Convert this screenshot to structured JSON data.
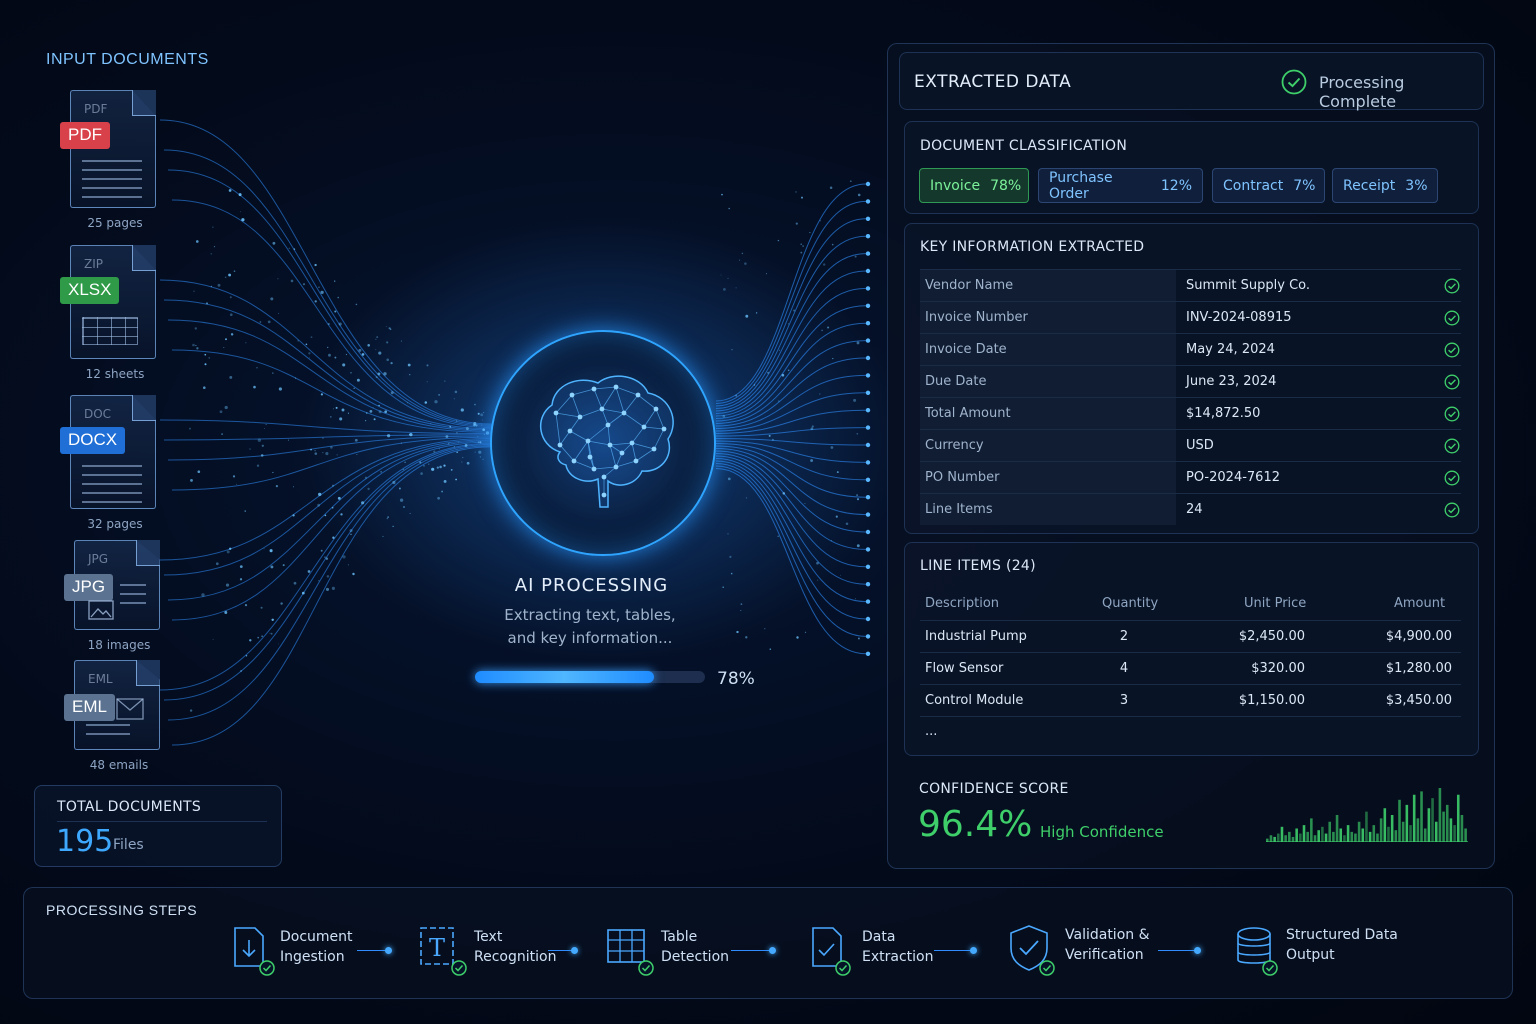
{
  "input": {
    "title": "INPUT DOCUMENTS",
    "documents": [
      {
        "type": "PDF",
        "ghost": "PDF",
        "caption": "25 pages",
        "color": "#d9414a"
      },
      {
        "type": "XLSX",
        "ghost": "ZIP",
        "caption": "12 sheets",
        "color": "#2f9a48"
      },
      {
        "type": "DOCX",
        "ghost": "DOC",
        "caption": "32 pages",
        "color": "#1f6fd6"
      },
      {
        "type": "JPG",
        "ghost": "JPG",
        "caption": "18 images",
        "color": "#5b7391"
      },
      {
        "type": "EML",
        "ghost": "EML",
        "caption": "48 emails",
        "color": "#5b7391"
      }
    ],
    "total": {
      "label": "TOTAL DOCUMENTS",
      "count": "195",
      "unit": "Files"
    }
  },
  "processing": {
    "title": "AI PROCESSING",
    "subtitle_line1": "Extracting text, tables,",
    "subtitle_line2": "and key information...",
    "progress_percent": 78,
    "progress_label": "78%"
  },
  "extracted": {
    "title": "EXTRACTED DATA",
    "status": "Processing Complete",
    "classification": {
      "title": "DOCUMENT CLASSIFICATION",
      "chips": [
        {
          "label": "Invoice",
          "value": "78%",
          "active": true
        },
        {
          "label": "Purchase Order",
          "value": "12%",
          "active": false
        },
        {
          "label": "Contract",
          "value": "7%",
          "active": false
        },
        {
          "label": "Receipt",
          "value": "3%",
          "active": false
        }
      ]
    },
    "key_info": {
      "title": "KEY INFORMATION EXTRACTED",
      "rows": [
        {
          "key": "Vendor Name",
          "value": "Summit Supply Co."
        },
        {
          "key": "Invoice Number",
          "value": "INV-2024-08915"
        },
        {
          "key": "Invoice Date",
          "value": "May 24, 2024"
        },
        {
          "key": "Due Date",
          "value": "June 23, 2024"
        },
        {
          "key": "Total Amount",
          "value": "$14,872.50"
        },
        {
          "key": "Currency",
          "value": "USD"
        },
        {
          "key": "PO Number",
          "value": "PO-2024-7612"
        },
        {
          "key": "Line Items",
          "value": "24"
        }
      ]
    },
    "line_items": {
      "title": "LINE ITEMS (24)",
      "headers": {
        "description": "Description",
        "quantity": "Quantity",
        "unit_price": "Unit Price",
        "amount": "Amount"
      },
      "rows": [
        {
          "description": "Industrial Pump",
          "quantity": "2",
          "unit_price": "$2,450.00",
          "amount": "$4,900.00"
        },
        {
          "description": "Flow Sensor",
          "quantity": "4",
          "unit_price": "$320.00",
          "amount": "$1,280.00"
        },
        {
          "description": "Control Module",
          "quantity": "3",
          "unit_price": "$1,150.00",
          "amount": "$3,450.00"
        }
      ],
      "more": "..."
    },
    "confidence": {
      "title": "CONFIDENCE SCORE",
      "score": "96.4%",
      "label": "High Confidence",
      "bars": [
        2,
        4,
        3,
        5,
        9,
        4,
        6,
        3,
        8,
        5,
        10,
        6,
        14,
        4,
        7,
        9,
        5,
        12,
        6,
        16,
        8,
        4,
        10,
        6,
        5,
        12,
        8,
        18,
        6,
        10,
        5,
        14,
        20,
        9,
        16,
        7,
        25,
        12,
        22,
        10,
        28,
        14,
        30,
        8,
        20,
        26,
        12,
        32,
        18,
        22,
        14,
        10,
        28,
        16,
        8
      ]
    }
  },
  "steps": {
    "title": "PROCESSING STEPS",
    "items": [
      {
        "label": "Document\nIngestion",
        "icon": "document-download-icon"
      },
      {
        "label": "Text\nRecognition",
        "icon": "text-recognition-icon"
      },
      {
        "label": "Table\nDetection",
        "icon": "table-icon"
      },
      {
        "label": "Data\nExtraction",
        "icon": "data-extraction-icon"
      },
      {
        "label": "Validation &\nVerification",
        "icon": "shield-check-icon"
      },
      {
        "label": "Structured Data\nOutput",
        "icon": "database-icon"
      }
    ]
  },
  "colors": {
    "accent": "#2ea4ff",
    "success": "#3ecf6a",
    "panel": "#0a1428"
  }
}
